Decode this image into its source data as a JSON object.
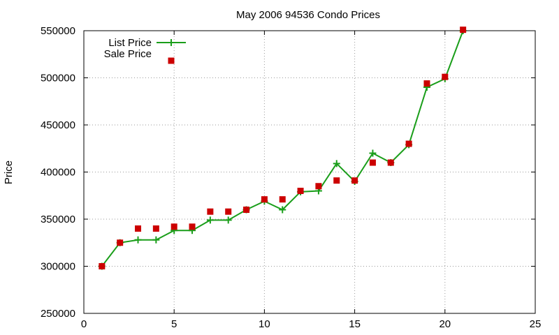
{
  "chart_data": {
    "type": "line",
    "title": "May 2006 94536 Condo Prices",
    "xlabel": "",
    "ylabel": "Price",
    "xlim": [
      0,
      25
    ],
    "ylim": [
      250000,
      550000
    ],
    "xticks": [
      "0",
      "5",
      "10",
      "15",
      "20",
      "25"
    ],
    "yticks": [
      "250000",
      "300000",
      "350000",
      "400000",
      "450000",
      "500000",
      "550000"
    ],
    "grid": true,
    "legend_position": "top-left",
    "series": [
      {
        "name": "List Price",
        "style": "line-with-plus-markers",
        "color": "#1a9e1a",
        "x": [
          1,
          2,
          3,
          4,
          5,
          6,
          7,
          8,
          9,
          10,
          11,
          12,
          13,
          14,
          15,
          16,
          17,
          18,
          19,
          20,
          21
        ],
        "values": [
          300000,
          325000,
          328000,
          328000,
          338000,
          338000,
          349000,
          349000,
          360000,
          369000,
          360000,
          379000,
          380000,
          409000,
          390000,
          420000,
          410000,
          429000,
          490000,
          499000,
          550000
        ]
      },
      {
        "name": "Sale Price",
        "style": "square-points",
        "color": "#cc0000",
        "x": [
          1,
          2,
          3,
          4,
          5,
          6,
          7,
          8,
          9,
          10,
          11,
          12,
          13,
          14,
          15,
          16,
          17,
          18,
          19,
          20,
          21
        ],
        "values": [
          300000,
          325000,
          340000,
          340000,
          342000,
          342000,
          358000,
          358000,
          360000,
          371000,
          371000,
          380000,
          385000,
          391000,
          391000,
          410000,
          410000,
          430000,
          494000,
          501000,
          551000
        ]
      }
    ]
  }
}
